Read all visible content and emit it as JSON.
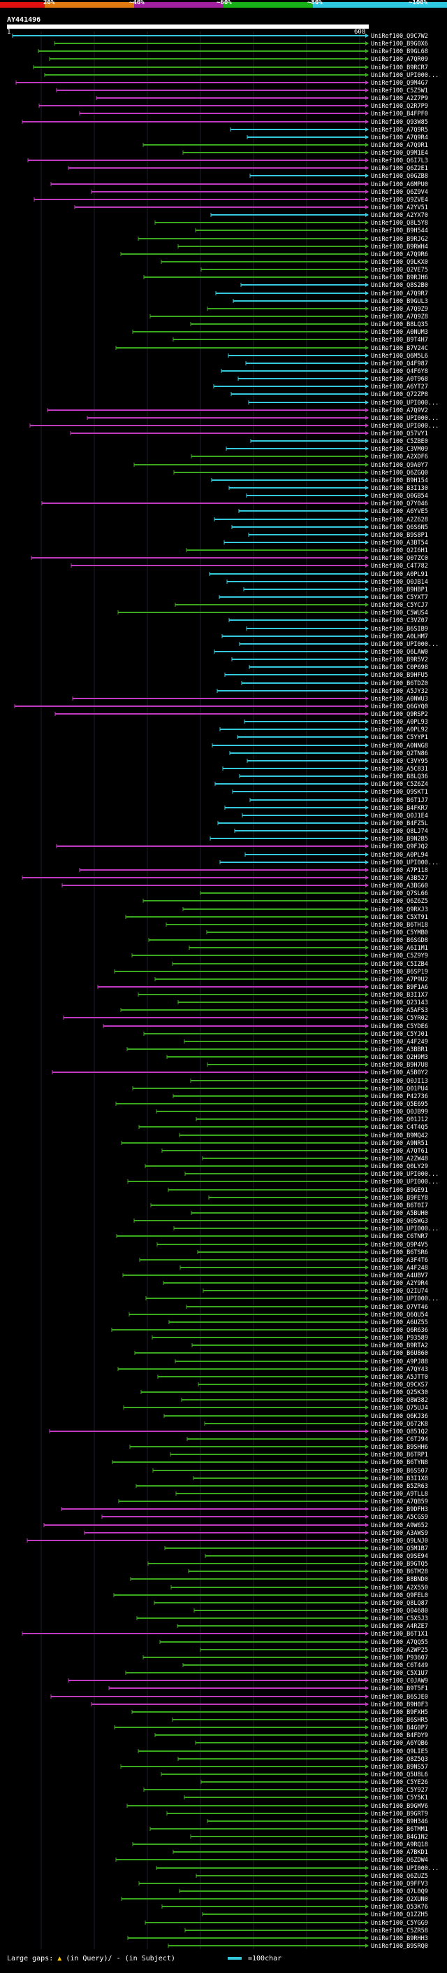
{
  "query": {
    "id": "AY441496",
    "start": "1",
    "end": "608"
  },
  "scale": {
    "labels": [
      "20%",
      "~40%",
      "~60%",
      "~80%",
      "~100%"
    ],
    "colors": [
      "#e01010",
      "#e07a10",
      "#a020a0",
      "#18b018",
      "#30c8e0"
    ]
  },
  "colors": {
    "cyan": "#35c9dd",
    "magenta": "#c03ac0",
    "green": "#3aa81c"
  },
  "legend": {
    "large_gaps": "Large gaps:",
    "in_query": "(in Query)/",
    "in_subject": "- (in Subject)",
    "scale_text": "=100char"
  },
  "hits": [
    {
      "id": "UniRef100_Q9C7W2",
      "c": "cyan"
    },
    {
      "id": "UniRef100_B9G0X6",
      "c": "green"
    },
    {
      "id": "UniRef100_B9GL68",
      "c": "green"
    },
    {
      "id": "UniRef100_A7QR09",
      "c": "green"
    },
    {
      "id": "UniRef100_B9RCR7",
      "c": "green"
    },
    {
      "id": "UniRef100_UPI000...",
      "c": "green"
    },
    {
      "id": "UniRef100_Q9M4G7",
      "c": "magenta"
    },
    {
      "id": "UniRef100_C5Z5W1",
      "c": "magenta"
    },
    {
      "id": "UniRef100_A2Z7P9",
      "c": "magenta"
    },
    {
      "id": "UniRef100_Q2R7P9",
      "c": "magenta"
    },
    {
      "id": "UniRef100_B4FPF0",
      "c": "magenta"
    },
    {
      "id": "UniRef100_Q93W85",
      "c": "magenta"
    },
    {
      "id": "UniRef100_A7Q9R5",
      "c": "cyan"
    },
    {
      "id": "UniRef100_A7Q9R4",
      "c": "cyan"
    },
    {
      "id": "UniRef100_A7Q9R1",
      "c": "green"
    },
    {
      "id": "UniRef100_Q9M1E4",
      "c": "green"
    },
    {
      "id": "UniRef100_Q6I7L3",
      "c": "magenta"
    },
    {
      "id": "UniRef100_Q6Z2E1",
      "c": "magenta"
    },
    {
      "id": "UniRef100_Q0GZB8",
      "c": "cyan"
    },
    {
      "id": "UniRef100_A6MPU0",
      "c": "magenta"
    },
    {
      "id": "UniRef100_Q6Z9V4",
      "c": "magenta"
    },
    {
      "id": "UniRef100_Q9ZVE4",
      "c": "magenta"
    },
    {
      "id": "UniRef100_A2YV51",
      "c": "magenta"
    },
    {
      "id": "UniRef100_A2YX70",
      "c": "cyan"
    },
    {
      "id": "UniRef100_Q8L5Y8",
      "c": "green"
    },
    {
      "id": "UniRef100_B9H544",
      "c": "green"
    },
    {
      "id": "UniRef100_B9RJG2",
      "c": "green"
    },
    {
      "id": "UniRef100_B9RWH4",
      "c": "green"
    },
    {
      "id": "UniRef100_A7Q9R6",
      "c": "green"
    },
    {
      "id": "UniRef100_Q9LKX0",
      "c": "green"
    },
    {
      "id": "UniRef100_Q2VE75",
      "c": "green"
    },
    {
      "id": "UniRef100_B9RJH6",
      "c": "green"
    },
    {
      "id": "UniRef100_Q8S2B0",
      "c": "cyan"
    },
    {
      "id": "UniRef100_A7Q9R7",
      "c": "cyan"
    },
    {
      "id": "UniRef100_B9GUL3",
      "c": "cyan"
    },
    {
      "id": "UniRef100_A7Q9Z9",
      "c": "green"
    },
    {
      "id": "UniRef100_A7Q9Z8",
      "c": "green"
    },
    {
      "id": "UniRef100_B8LQ35",
      "c": "green"
    },
    {
      "id": "UniRef100_A0NUM3",
      "c": "green"
    },
    {
      "id": "UniRef100_B9T4H7",
      "c": "green"
    },
    {
      "id": "UniRef100_B7V24C",
      "c": "green"
    },
    {
      "id": "UniRef100_Q6M5L6",
      "c": "cyan"
    },
    {
      "id": "UniRef100_Q4F987",
      "c": "cyan"
    },
    {
      "id": "UniRef100_Q4F6Y8",
      "c": "cyan"
    },
    {
      "id": "UniRef100_A0T968",
      "c": "cyan"
    },
    {
      "id": "UniRef100_A6YT27",
      "c": "cyan"
    },
    {
      "id": "UniRef100_Q72ZP8",
      "c": "cyan"
    },
    {
      "id": "UniRef100_UPI000...",
      "c": "cyan"
    },
    {
      "id": "UniRef100_A7Q9V2",
      "c": "magenta"
    },
    {
      "id": "UniRef100_UPI000...",
      "c": "magenta"
    },
    {
      "id": "UniRef100_UPI000...",
      "c": "magenta"
    },
    {
      "id": "UniRef100_Q57VY1",
      "c": "magenta"
    },
    {
      "id": "UniRef100_C5ZBE0",
      "c": "cyan"
    },
    {
      "id": "UniRef100_C3VM09",
      "c": "cyan"
    },
    {
      "id": "UniRef100_A2XDF6",
      "c": "green"
    },
    {
      "id": "UniRef100_Q9A0Y7",
      "c": "green"
    },
    {
      "id": "UniRef100_Q6ZGQ0",
      "c": "green"
    },
    {
      "id": "UniRef100_B9H154",
      "c": "cyan"
    },
    {
      "id": "UniRef100_B3I130",
      "c": "cyan"
    },
    {
      "id": "UniRef100_Q0GB54",
      "c": "cyan"
    },
    {
      "id": "UniRef100_Q7Y046",
      "c": "magenta"
    },
    {
      "id": "UniRef100_A6YVE5",
      "c": "cyan"
    },
    {
      "id": "UniRef100_A2Z628",
      "c": "cyan"
    },
    {
      "id": "UniRef100_Q6S6N5",
      "c": "cyan"
    },
    {
      "id": "UniRef100_B9S8P1",
      "c": "cyan"
    },
    {
      "id": "UniRef100_A3BT54",
      "c": "cyan"
    },
    {
      "id": "UniRef100_Q2I6H1",
      "c": "green"
    },
    {
      "id": "UniRef100_Q07ZC0",
      "c": "magenta"
    },
    {
      "id": "UniRef100_C4T782",
      "c": "magenta"
    },
    {
      "id": "UniRef100_A0PL91",
      "c": "cyan"
    },
    {
      "id": "UniRef100_Q0JB14",
      "c": "cyan"
    },
    {
      "id": "UniRef100_B9HBP1",
      "c": "cyan"
    },
    {
      "id": "UniRef100_C5YXT7",
      "c": "cyan"
    },
    {
      "id": "UniRef100_C5YCJ7",
      "c": "green"
    },
    {
      "id": "UniRef100_C5WUS4",
      "c": "green"
    },
    {
      "id": "UniRef100_C3VZ07",
      "c": "cyan"
    },
    {
      "id": "UniRef100_B6SIB9",
      "c": "cyan"
    },
    {
      "id": "UniRef100_A0LHM7",
      "c": "cyan"
    },
    {
      "id": "UniRef100_UPI000...",
      "c": "cyan"
    },
    {
      "id": "UniRef100_Q6LAW0",
      "c": "cyan"
    },
    {
      "id": "UniRef100_B9R5V2",
      "c": "cyan"
    },
    {
      "id": "UniRef100_C0P698",
      "c": "cyan"
    },
    {
      "id": "UniRef100_B9HFU5",
      "c": "cyan"
    },
    {
      "id": "UniRef100_B6TDZ0",
      "c": "cyan"
    },
    {
      "id": "UniRef100_A5JY32",
      "c": "cyan"
    },
    {
      "id": "UniRef100_A0NWU3",
      "c": "magenta"
    },
    {
      "id": "UniRef100_Q6GYQ0",
      "c": "magenta"
    },
    {
      "id": "UniRef100_Q9RSP2",
      "c": "magenta"
    },
    {
      "id": "UniRef100_A0PL93",
      "c": "cyan"
    },
    {
      "id": "UniRef100_A0PL92",
      "c": "cyan"
    },
    {
      "id": "UniRef100_C5YYP1",
      "c": "cyan"
    },
    {
      "id": "UniRef100_A0NNG8",
      "c": "cyan"
    },
    {
      "id": "UniRef100_Q2TN86",
      "c": "cyan"
    },
    {
      "id": "UniRef100_C3VY95",
      "c": "cyan"
    },
    {
      "id": "UniRef100_A5C831",
      "c": "cyan"
    },
    {
      "id": "UniRef100_B8LQ36",
      "c": "cyan"
    },
    {
      "id": "UniRef100_C5Z6Z4",
      "c": "cyan"
    },
    {
      "id": "UniRef100_Q9SKT1",
      "c": "cyan"
    },
    {
      "id": "UniRef100_B6T1J7",
      "c": "cyan"
    },
    {
      "id": "UniRef100_B4FKR7",
      "c": "cyan"
    },
    {
      "id": "UniRef100_Q0J1E4",
      "c": "cyan"
    },
    {
      "id": "UniRef100_B4FZ5L",
      "c": "cyan"
    },
    {
      "id": "UniRef100_Q8LJ74",
      "c": "cyan"
    },
    {
      "id": "UniRef100_B9N2B5",
      "c": "cyan"
    },
    {
      "id": "UniRef100_Q9FJQ2",
      "c": "magenta"
    },
    {
      "id": "UniRef100_A0PL94",
      "c": "cyan"
    },
    {
      "id": "UniRef100_UPI000...",
      "c": "cyan"
    },
    {
      "id": "UniRef100_A7P118",
      "c": "magenta"
    },
    {
      "id": "UniRef100_A3B527",
      "c": "magenta"
    },
    {
      "id": "UniRef100_A3BG60",
      "c": "magenta"
    },
    {
      "id": "UniRef100_Q7SL66",
      "c": "green"
    },
    {
      "id": "UniRef100_Q6Z6Z5",
      "c": "green"
    },
    {
      "id": "UniRef100_Q9RXJ3",
      "c": "green"
    },
    {
      "id": "UniRef100_C5XT91",
      "c": "green"
    },
    {
      "id": "UniRef100_B6TH18",
      "c": "green"
    },
    {
      "id": "UniRef100_C5YMB0",
      "c": "green"
    },
    {
      "id": "UniRef100_B6SGD8",
      "c": "green"
    },
    {
      "id": "UniRef100_A6I1M1",
      "c": "green"
    },
    {
      "id": "UniRef100_C5Z9Y9",
      "c": "green"
    },
    {
      "id": "UniRef100_C5IZB4",
      "c": "green"
    },
    {
      "id": "UniRef100_B6SP19",
      "c": "green"
    },
    {
      "id": "UniRef100_A7P9U2",
      "c": "green"
    },
    {
      "id": "UniRef100_B9F1A6",
      "c": "magenta"
    },
    {
      "id": "UniRef100_B3I1X7",
      "c": "green"
    },
    {
      "id": "UniRef100_Q23143",
      "c": "green"
    },
    {
      "id": "UniRef100_A5AFS3",
      "c": "green"
    },
    {
      "id": "UniRef100_C5YR02",
      "c": "magenta"
    },
    {
      "id": "UniRef100_C5YDE6",
      "c": "magenta"
    },
    {
      "id": "UniRef100_C5YJ01",
      "c": "green"
    },
    {
      "id": "UniRef100_A4F249",
      "c": "green"
    },
    {
      "id": "UniRef100_A3BBR1",
      "c": "green"
    },
    {
      "id": "UniRef100_Q2H9M3",
      "c": "green"
    },
    {
      "id": "UniRef100_B9H7U8",
      "c": "green"
    },
    {
      "id": "UniRef100_A5B0Y2",
      "c": "magenta"
    },
    {
      "id": "UniRef100_Q0JI13",
      "c": "green"
    },
    {
      "id": "UniRef100_Q01PU4",
      "c": "green"
    },
    {
      "id": "UniRef100_P42736",
      "c": "green"
    },
    {
      "id": "UniRef100_Q5E695",
      "c": "green"
    },
    {
      "id": "UniRef100_Q0JB99",
      "c": "green"
    },
    {
      "id": "UniRef100_Q01J12",
      "c": "green"
    },
    {
      "id": "UniRef100_C4T4Q5",
      "c": "green"
    },
    {
      "id": "UniRef100_B9MQ42",
      "c": "green"
    },
    {
      "id": "UniRef100_A9NR51",
      "c": "green"
    },
    {
      "id": "UniRef100_A7QT61",
      "c": "green"
    },
    {
      "id": "UniRef100_A2ZW48",
      "c": "green"
    },
    {
      "id": "UniRef100_Q0LY29",
      "c": "green"
    },
    {
      "id": "UniRef100_UPI000...",
      "c": "green"
    },
    {
      "id": "UniRef100_UPI000...",
      "c": "green"
    },
    {
      "id": "UniRef100_B9GE91",
      "c": "green"
    },
    {
      "id": "UniRef100_B9FEY8",
      "c": "green"
    },
    {
      "id": "UniRef100_B6T0I7",
      "c": "green"
    },
    {
      "id": "UniRef100_A5BUH0",
      "c": "green"
    },
    {
      "id": "UniRef100_Q0SWG3",
      "c": "green"
    },
    {
      "id": "UniRef100_UPI000...",
      "c": "green"
    },
    {
      "id": "UniRef100_C6TNR7",
      "c": "green"
    },
    {
      "id": "UniRef100_Q9P4V5",
      "c": "green"
    },
    {
      "id": "UniRef100_B6TSR6",
      "c": "green"
    },
    {
      "id": "UniRef100_A3F4T6",
      "c": "green"
    },
    {
      "id": "UniRef100_A4F248",
      "c": "green"
    },
    {
      "id": "UniRef100_A4UBV7",
      "c": "green"
    },
    {
      "id": "UniRef100_A2Y9R4",
      "c": "green"
    },
    {
      "id": "UniRef100_Q2IU74",
      "c": "green"
    },
    {
      "id": "UniRef100_UPI000...",
      "c": "green"
    },
    {
      "id": "UniRef100_Q7VT46",
      "c": "green"
    },
    {
      "id": "UniRef100_Q6QU54",
      "c": "green"
    },
    {
      "id": "UniRef100_A6UZ55",
      "c": "green"
    },
    {
      "id": "UniRef100_Q6R636",
      "c": "green"
    },
    {
      "id": "UniRef100_P93589",
      "c": "green"
    },
    {
      "id": "UniRef100_B9RTA2",
      "c": "green"
    },
    {
      "id": "UniRef100_B6U860",
      "c": "green"
    },
    {
      "id": "UniRef100_A9PJ88",
      "c": "green"
    },
    {
      "id": "UniRef100_A7QY43",
      "c": "green"
    },
    {
      "id": "UniRef100_A5JTT0",
      "c": "green"
    },
    {
      "id": "UniRef100_Q9CXS7",
      "c": "green"
    },
    {
      "id": "UniRef100_Q25K30",
      "c": "green"
    },
    {
      "id": "UniRef100_Q8W382",
      "c": "green"
    },
    {
      "id": "UniRef100_Q75UJ4",
      "c": "green"
    },
    {
      "id": "UniRef100_Q6KJ36",
      "c": "green"
    },
    {
      "id": "UniRef100_Q672K8",
      "c": "green"
    },
    {
      "id": "UniRef100_Q851Q2",
      "c": "magenta"
    },
    {
      "id": "UniRef100_C6TJ94",
      "c": "green"
    },
    {
      "id": "UniRef100_B9SHH6",
      "c": "green"
    },
    {
      "id": "UniRef100_B6TRP1",
      "c": "green"
    },
    {
      "id": "UniRef100_B6TYN8",
      "c": "green"
    },
    {
      "id": "UniRef100_B6SS07",
      "c": "green"
    },
    {
      "id": "UniRef100_B3I1X8",
      "c": "green"
    },
    {
      "id": "UniRef100_B5ZR63",
      "c": "green"
    },
    {
      "id": "UniRef100_A9TLL8",
      "c": "green"
    },
    {
      "id": "UniRef100_A7QB59",
      "c": "green"
    },
    {
      "id": "UniRef100_B9DFH3",
      "c": "magenta"
    },
    {
      "id": "UniRef100_A5CGS9",
      "c": "magenta"
    },
    {
      "id": "UniRef100_A9W652",
      "c": "magenta"
    },
    {
      "id": "UniRef100_A3AWS9",
      "c": "magenta"
    },
    {
      "id": "UniRef100_Q9LNJ0",
      "c": "magenta"
    },
    {
      "id": "UniRef100_Q5M1B7",
      "c": "green"
    },
    {
      "id": "UniRef100_Q9SE94",
      "c": "green"
    },
    {
      "id": "UniRef100_B9GTQ5",
      "c": "green"
    },
    {
      "id": "UniRef100_B6TM28",
      "c": "green"
    },
    {
      "id": "UniRef100_B8BND0",
      "c": "green"
    },
    {
      "id": "UniRef100_A2X550",
      "c": "green"
    },
    {
      "id": "UniRef100_Q9FEL0",
      "c": "green"
    },
    {
      "id": "UniRef100_Q8LQ87",
      "c": "green"
    },
    {
      "id": "UniRef100_Q04680",
      "c": "green"
    },
    {
      "id": "UniRef100_C5X5J3",
      "c": "green"
    },
    {
      "id": "UniRef100_A4RZE7",
      "c": "green"
    },
    {
      "id": "UniRef100_B6T1X1",
      "c": "magenta"
    },
    {
      "id": "UniRef100_A7QQ55",
      "c": "green"
    },
    {
      "id": "UniRef100_A2WP25",
      "c": "green"
    },
    {
      "id": "UniRef100_P93607",
      "c": "green"
    },
    {
      "id": "UniRef100_C6T449",
      "c": "green"
    },
    {
      "id": "UniRef100_C5X1U7",
      "c": "green"
    },
    {
      "id": "UniRef100_C0JAW9",
      "c": "magenta"
    },
    {
      "id": "UniRef100_B9T5F1",
      "c": "magenta"
    },
    {
      "id": "UniRef100_B6SJE0",
      "c": "magenta"
    },
    {
      "id": "UniRef100_B9H0F3",
      "c": "magenta"
    },
    {
      "id": "UniRef100_B9FXH5",
      "c": "green"
    },
    {
      "id": "UniRef100_B6SHR5",
      "c": "green"
    },
    {
      "id": "UniRef100_B4G0P7",
      "c": "green"
    },
    {
      "id": "UniRef100_B4FDY9",
      "c": "green"
    },
    {
      "id": "UniRef100_A6YQB6",
      "c": "green"
    },
    {
      "id": "UniRef100_Q9LIE5",
      "c": "green"
    },
    {
      "id": "UniRef100_Q8Z5Q3",
      "c": "green"
    },
    {
      "id": "UniRef100_B9NS57",
      "c": "green"
    },
    {
      "id": "UniRef100_Q5U8L6",
      "c": "green"
    },
    {
      "id": "UniRef100_C5YE26",
      "c": "green"
    },
    {
      "id": "UniRef100_C5Y927",
      "c": "green"
    },
    {
      "id": "UniRef100_C5Y5K1",
      "c": "green"
    },
    {
      "id": "UniRef100_B9GMV6",
      "c": "green"
    },
    {
      "id": "UniRef100_B9GRT9",
      "c": "green"
    },
    {
      "id": "UniRef100_B9H346",
      "c": "green"
    },
    {
      "id": "UniRef100_B6TMM1",
      "c": "green"
    },
    {
      "id": "UniRef100_B4G1N2",
      "c": "green"
    },
    {
      "id": "UniRef100_A9RQ18",
      "c": "green"
    },
    {
      "id": "UniRef100_A7BKD1",
      "c": "green"
    },
    {
      "id": "UniRef100_Q6ZDW4",
      "c": "green"
    },
    {
      "id": "UniRef100_UPI000...",
      "c": "green"
    },
    {
      "id": "UniRef100_Q6ZUZ5",
      "c": "green"
    },
    {
      "id": "UniRef100_Q9FFV3",
      "c": "green"
    },
    {
      "id": "UniRef100_Q7L0Q9",
      "c": "green"
    },
    {
      "id": "UniRef100_Q2XUN0",
      "c": "green"
    },
    {
      "id": "UniRef100_Q53K76",
      "c": "green"
    },
    {
      "id": "UniRef100_Q1ZZH5",
      "c": "green"
    },
    {
      "id": "UniRef100_C5YGG9",
      "c": "green"
    },
    {
      "id": "UniRef100_C5ZR58",
      "c": "green"
    },
    {
      "id": "UniRef100_B9RHH3",
      "c": "green"
    },
    {
      "id": "UniRef100_B9SRQ0",
      "c": "green"
    }
  ]
}
